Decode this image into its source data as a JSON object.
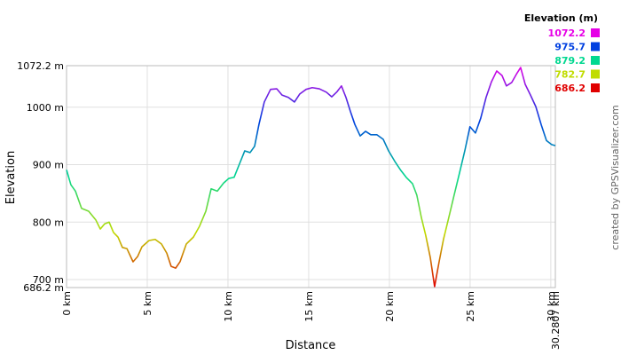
{
  "chart_data": {
    "type": "line",
    "x_label": "Distance",
    "y_label": "Elevation",
    "credit": "created by GPSVisualizer.com",
    "legend_title": "Elevation (m)",
    "legend": [
      {
        "value": 1072.2,
        "color": "#e600e6"
      },
      {
        "value": 975.7,
        "color": "#0040e0"
      },
      {
        "value": 879.2,
        "color": "#00d890"
      },
      {
        "value": 782.7,
        "color": "#c0dc00"
      },
      {
        "value": 686.2,
        "color": "#e00000"
      }
    ],
    "xlim": [
      0,
      30.2807
    ],
    "ylim": [
      686.2,
      1072.2
    ],
    "xticks": [
      {
        "value": 0,
        "label": "0 km"
      },
      {
        "value": 5,
        "label": "5 km"
      },
      {
        "value": 10,
        "label": "10 km"
      },
      {
        "value": 15,
        "label": "15 km"
      },
      {
        "value": 20,
        "label": "20 km"
      },
      {
        "value": 25,
        "label": "25 km"
      },
      {
        "value": 30,
        "label": "30 km"
      },
      {
        "value": 30.2807,
        "label": "30.2807 km"
      }
    ],
    "yticks": [
      {
        "value": 686.2,
        "label": "686.2 m"
      },
      {
        "value": 700,
        "label": "700 m"
      },
      {
        "value": 800,
        "label": "800 m"
      },
      {
        "value": 900,
        "label": "900 m"
      },
      {
        "value": 1000,
        "label": "1000 m"
      },
      {
        "value": 1072.2,
        "label": "1072.2 m"
      }
    ],
    "grid": true,
    "x": [
      0,
      0.27,
      0.55,
      0.93,
      1.37,
      1.81,
      2.09,
      2.36,
      2.64,
      2.91,
      3.19,
      3.46,
      3.74,
      4.12,
      4.4,
      4.67,
      5.11,
      5.49,
      5.88,
      6.21,
      6.48,
      6.76,
      7.03,
      7.42,
      7.86,
      8.24,
      8.63,
      8.96,
      9.34,
      9.73,
      10.05,
      10.38,
      10.71,
      11.04,
      11.37,
      11.65,
      11.92,
      12.25,
      12.64,
      13.02,
      13.35,
      13.74,
      14.12,
      14.45,
      14.84,
      15.22,
      15.66,
      16.1,
      16.43,
      16.76,
      17.03,
      17.31,
      17.58,
      17.86,
      18.19,
      18.52,
      18.85,
      19.23,
      19.62,
      19.95,
      20.33,
      20.71,
      21.04,
      21.43,
      21.7,
      21.98,
      22.25,
      22.53,
      22.8,
      23.08,
      23.35,
      23.68,
      24.01,
      24.34,
      24.67,
      24.99,
      25.33,
      25.66,
      25.99,
      26.32,
      26.65,
      26.98,
      27.25,
      27.58,
      27.86,
      28.13,
      28.41,
      28.74,
      29.07,
      29.4,
      29.73,
      30.05,
      30.28
    ],
    "values": [
      891,
      865,
      854,
      824,
      819,
      804,
      788,
      797,
      800,
      782,
      774,
      756,
      754,
      731,
      740,
      757,
      768,
      770,
      762,
      746,
      723,
      720,
      731,
      762,
      774,
      793,
      819,
      858,
      854,
      868,
      876,
      878,
      901,
      924,
      921,
      932,
      970,
      1009,
      1031,
      1032,
      1021,
      1017,
      1009,
      1023,
      1031,
      1034,
      1032,
      1026,
      1018,
      1027,
      1037,
      1017,
      993,
      970,
      950,
      958,
      952,
      952,
      944,
      924,
      906,
      890,
      878,
      867,
      847,
      808,
      777,
      739,
      688,
      731,
      770,
      808,
      847,
      885,
      924,
      966,
      955,
      981,
      1017,
      1044,
      1063,
      1055,
      1037,
      1043,
      1057,
      1069,
      1040,
      1021,
      1001,
      970,
      942,
      935,
      933
    ]
  }
}
